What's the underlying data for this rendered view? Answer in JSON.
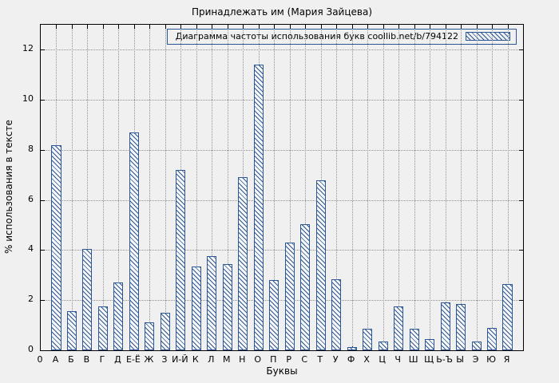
{
  "chart_data": {
    "type": "bar",
    "title": "Принадлежать им (Мария Зайцева)",
    "legend_label": "Диаграмма частоты использования букв coollib.net/b/794122",
    "xlabel": "Буквы",
    "ylabel": "% использования в тексте",
    "categories": [
      "А",
      "Б",
      "В",
      "Г",
      "Д",
      "Е-Ё",
      "Ж",
      "З",
      "И-Й",
      "К",
      "Л",
      "М",
      "Н",
      "О",
      "П",
      "Р",
      "С",
      "Т",
      "У",
      "Ф",
      "Х",
      "Ц",
      "Ч",
      "Ш",
      "Щ",
      "Ь-Ъ",
      "Ы",
      "Э",
      "Ю",
      "Я"
    ],
    "values": [
      8.2,
      1.55,
      4.05,
      1.75,
      2.7,
      8.7,
      1.1,
      1.5,
      7.2,
      3.35,
      3.75,
      3.45,
      6.9,
      11.4,
      2.8,
      4.3,
      5.05,
      6.8,
      2.85,
      0.12,
      0.85,
      0.35,
      1.75,
      0.85,
      0.45,
      1.9,
      1.85,
      0.35,
      0.9,
      2.65
    ],
    "origin_tick_label": "0",
    "y_ticks": [
      0,
      2,
      4,
      6,
      8,
      10,
      12
    ],
    "ylim": [
      0,
      13
    ],
    "grid": true,
    "legend_position": "top-right",
    "bar_color": "#2b5797",
    "hatch": "diagonal",
    "background_color": "#f0f0f0"
  }
}
